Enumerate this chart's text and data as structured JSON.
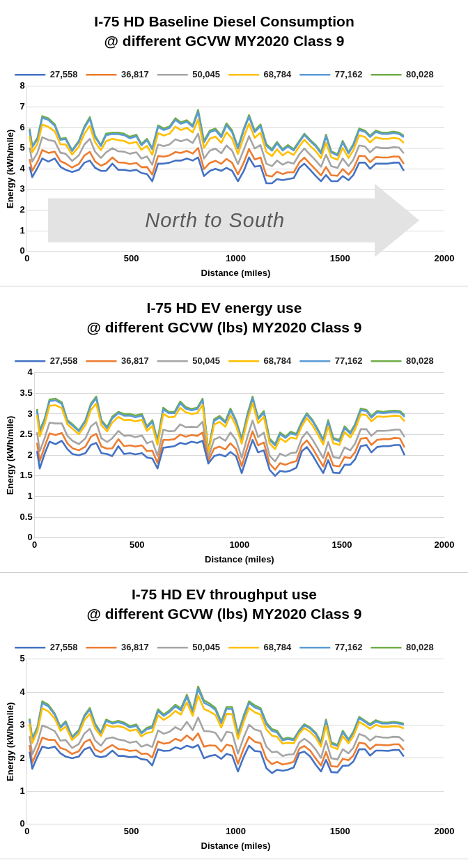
{
  "chart_data": [
    {
      "type": "line",
      "title": "I-75 HD Baseline Diesel Consumption\n@ different GCVW MY2020 Class 9",
      "xlabel": "Distance (miles)",
      "ylabel": "Energy (kWh/mile)",
      "xlim": [
        0,
        2000
      ],
      "xticks": [
        0,
        500,
        1000,
        1500,
        2000
      ],
      "ylim": [
        0,
        8
      ],
      "yticks": [
        0,
        1,
        2,
        3,
        4,
        5,
        6,
        7,
        8
      ],
      "grid": "y",
      "legend": "top",
      "marker": "none",
      "line_style": "solid",
      "annotations": [
        "North to South"
      ],
      "x": [
        12,
        25,
        50,
        73,
        102,
        133,
        160,
        185,
        216,
        248,
        275,
        301,
        326,
        354,
        379,
        409,
        437,
        465,
        492,
        524,
        548,
        575,
        600,
        628,
        655,
        683,
        711,
        737,
        766,
        794,
        820,
        848,
        876,
        903,
        931,
        956,
        983,
        1011,
        1039,
        1064,
        1091,
        1119,
        1147,
        1174,
        1198,
        1225,
        1250,
        1278,
        1305,
        1329,
        1357,
        1384,
        1409,
        1433,
        1458,
        1488,
        1513,
        1541,
        1564,
        1592,
        1620,
        1644,
        1672,
        1702,
        1730,
        1758,
        1783,
        1806
      ],
      "series": [
        {
          "name": "27,558",
          "color": "#4472c4",
          "values": [
            4.1,
            3.6,
            4.05,
            4.5,
            4.35,
            4.5,
            4.1,
            3.95,
            3.85,
            3.95,
            4.3,
            4.4,
            4.05,
            3.9,
            3.9,
            4.25,
            3.95,
            3.95,
            3.9,
            3.95,
            3.8,
            3.75,
            3.4,
            4.25,
            4.25,
            4.3,
            4.4,
            4.4,
            4.5,
            4.4,
            4.55,
            3.65,
            3.9,
            4.0,
            3.9,
            4.05,
            3.9,
            3.4,
            3.9,
            4.55,
            4.1,
            4.15,
            3.3,
            3.3,
            3.5,
            3.45,
            3.5,
            3.55,
            4.05,
            4.25,
            3.95,
            3.65,
            3.4,
            3.7,
            3.4,
            3.4,
            3.65,
            3.45,
            3.7,
            4.3,
            4.3,
            4.0,
            4.25,
            4.25,
            4.25,
            4.3,
            4.3,
            3.9
          ]
        },
        {
          "name": "36,817",
          "color": "#ed7d31",
          "values": [
            4.47,
            3.9,
            4.34,
            4.91,
            4.77,
            4.83,
            4.37,
            4.26,
            4.06,
            4.23,
            4.65,
            4.82,
            4.36,
            4.15,
            4.26,
            4.55,
            4.31,
            4.3,
            4.23,
            4.29,
            4.08,
            4.09,
            3.72,
            4.62,
            4.59,
            4.65,
            4.81,
            4.77,
            4.87,
            4.74,
            5.01,
            3.99,
            4.29,
            4.39,
            4.24,
            4.48,
            4.29,
            3.73,
            4.31,
            4.96,
            4.45,
            4.55,
            3.68,
            3.63,
            3.86,
            3.75,
            3.83,
            3.83,
            4.31,
            4.54,
            4.24,
            3.95,
            3.68,
            4.09,
            3.69,
            3.66,
            3.99,
            3.72,
            4.0,
            4.63,
            4.61,
            4.32,
            4.57,
            4.55,
            4.55,
            4.6,
            4.59,
            4.24
          ]
        },
        {
          "name": "50,045",
          "color": "#a5a5a5",
          "values": [
            5.03,
            4.35,
            4.78,
            5.53,
            5.4,
            5.33,
            4.78,
            4.73,
            4.38,
            4.65,
            5.18,
            5.45,
            4.83,
            4.53,
            4.8,
            5.0,
            4.85,
            4.83,
            4.73,
            4.8,
            4.5,
            4.6,
            4.2,
            5.18,
            5.1,
            5.18,
            5.43,
            5.33,
            5.43,
            5.25,
            5.7,
            4.5,
            4.88,
            4.98,
            4.75,
            5.13,
            4.88,
            4.23,
            4.93,
            5.58,
            4.98,
            5.15,
            4.25,
            4.13,
            4.4,
            4.2,
            4.33,
            4.25,
            4.7,
            4.98,
            4.68,
            4.4,
            4.1,
            4.68,
            4.13,
            4.05,
            4.5,
            4.13,
            4.45,
            5.13,
            5.08,
            4.8,
            5.05,
            5.0,
            5.0,
            5.05,
            5.03,
            4.75
          ]
        },
        {
          "name": "68,784",
          "color": "#ffc000",
          "values": [
            5.58,
            4.8,
            5.21,
            6.14,
            6.03,
            5.82,
            5.18,
            5.19,
            4.69,
            5.07,
            5.7,
            6.08,
            5.29,
            4.9,
            5.34,
            5.45,
            5.39,
            5.35,
            5.22,
            5.31,
            4.92,
            5.11,
            4.68,
            5.73,
            5.61,
            5.7,
            6.04,
            5.88,
            5.98,
            5.76,
            6.39,
            5.01,
            5.46,
            5.56,
            5.26,
            5.77,
            5.46,
            4.72,
            5.54,
            6.19,
            5.5,
            5.75,
            4.82,
            4.62,
            4.94,
            4.65,
            4.82,
            4.67,
            5.09,
            5.41,
            5.11,
            4.85,
            4.52,
            5.26,
            4.56,
            4.44,
            5.01,
            4.53,
            4.9,
            5.62,
            5.54,
            5.28,
            5.53,
            5.45,
            5.45,
            5.5,
            5.46,
            5.26
          ]
        },
        {
          "name": "77,162",
          "color": "#5b9bd5",
          "values": [
            5.88,
            5.04,
            5.44,
            6.47,
            6.37,
            6.08,
            5.4,
            5.44,
            4.86,
            5.29,
            5.98,
            6.42,
            5.54,
            5.1,
            5.63,
            5.69,
            5.68,
            5.63,
            5.48,
            5.58,
            5.14,
            5.38,
            4.94,
            6.03,
            5.88,
            5.98,
            6.37,
            6.18,
            6.28,
            6.03,
            6.76,
            5.28,
            5.77,
            5.87,
            5.53,
            6.11,
            5.77,
            4.98,
            5.87,
            6.52,
            5.78,
            6.07,
            5.12,
            4.88,
            5.23,
            4.89,
            5.08,
            4.89,
            5.3,
            5.64,
            5.34,
            5.09,
            4.74,
            5.57,
            4.79,
            4.65,
            5.28,
            4.75,
            5.14,
            5.88,
            5.79,
            5.54,
            5.79,
            5.69,
            5.69,
            5.74,
            5.69,
            5.53
          ]
        },
        {
          "name": "80,028",
          "color": "#70ad47",
          "values": [
            5.95,
            5.1,
            5.5,
            6.55,
            6.45,
            6.15,
            5.45,
            5.5,
            4.9,
            5.35,
            6.05,
            6.5,
            5.6,
            5.15,
            5.7,
            5.75,
            5.75,
            5.7,
            5.55,
            5.65,
            5.2,
            5.45,
            5.0,
            6.1,
            5.95,
            6.05,
            6.45,
            6.25,
            6.35,
            6.1,
            6.85,
            5.35,
            5.85,
            5.95,
            5.6,
            6.2,
            5.85,
            5.05,
            5.95,
            6.6,
            5.85,
            6.15,
            5.2,
            4.95,
            5.3,
            4.95,
            5.15,
            4.95,
            5.35,
            5.7,
            5.4,
            5.15,
            4.8,
            5.65,
            4.85,
            4.7,
            5.35,
            4.8,
            5.2,
            5.95,
            5.85,
            5.6,
            5.85,
            5.75,
            5.75,
            5.8,
            5.75,
            5.6
          ]
        }
      ]
    },
    {
      "type": "line",
      "title": "I-75 HD EV energy use\n@ different GCVW (lbs) MY2020 Class 9",
      "xlabel": "Distance (miles)",
      "ylabel": "Energy (kWh/mile)",
      "xlim": [
        0,
        2000
      ],
      "xticks": [
        0,
        500,
        1000,
        1500,
        2000
      ],
      "ylim": [
        0,
        4
      ],
      "yticks": [
        0,
        0.5,
        1,
        1.5,
        2,
        2.5,
        3,
        3.5,
        4
      ],
      "grid": "y",
      "legend": "top",
      "marker": "none",
      "line_style": "solid",
      "x": [
        12,
        25,
        50,
        73,
        102,
        133,
        160,
        185,
        216,
        248,
        275,
        301,
        326,
        354,
        379,
        409,
        437,
        465,
        492,
        524,
        548,
        575,
        600,
        628,
        655,
        683,
        711,
        737,
        766,
        794,
        820,
        848,
        876,
        903,
        931,
        956,
        983,
        1011,
        1039,
        1064,
        1091,
        1119,
        1147,
        1174,
        1198,
        1225,
        1250,
        1278,
        1305,
        1329,
        1357,
        1384,
        1409,
        1433,
        1458,
        1488,
        1513,
        1541,
        1564,
        1592,
        1620,
        1644,
        1672,
        1702,
        1730,
        1758,
        1783,
        1806
      ],
      "series": [
        {
          "name": "27,558",
          "color": "#4472c4",
          "values": [
            2.1,
            1.68,
            2.05,
            2.33,
            2.27,
            2.35,
            2.15,
            2.03,
            2.0,
            2.05,
            2.25,
            2.3,
            2.05,
            2.03,
            1.98,
            2.22,
            2.03,
            2.05,
            2.02,
            2.05,
            1.95,
            1.92,
            1.68,
            2.18,
            2.2,
            2.22,
            2.3,
            2.27,
            2.33,
            2.3,
            2.35,
            1.8,
            1.98,
            2.02,
            1.97,
            2.08,
            1.98,
            1.57,
            2.0,
            2.37,
            2.07,
            2.12,
            1.65,
            1.5,
            1.62,
            1.6,
            1.63,
            1.7,
            2.1,
            2.2,
            2.0,
            1.77,
            1.57,
            1.88,
            1.58,
            1.57,
            1.77,
            1.77,
            1.9,
            2.22,
            2.25,
            2.07,
            2.2,
            2.22,
            2.22,
            2.25,
            2.25,
            2.0
          ]
        },
        {
          "name": "36,817",
          "color": "#ed7d31",
          "values": [
            2.3,
            1.86,
            2.22,
            2.53,
            2.49,
            2.54,
            2.29,
            2.17,
            2.12,
            2.21,
            2.45,
            2.52,
            2.21,
            2.16,
            2.17,
            2.39,
            2.22,
            2.24,
            2.21,
            2.24,
            2.1,
            2.11,
            1.81,
            2.37,
            2.37,
            2.39,
            2.5,
            2.45,
            2.49,
            2.47,
            2.55,
            1.86,
            2.16,
            2.21,
            2.14,
            2.29,
            2.15,
            1.74,
            2.2,
            2.58,
            2.24,
            2.31,
            1.8,
            1.65,
            1.81,
            1.77,
            1.82,
            1.86,
            2.24,
            2.36,
            2.17,
            1.94,
            1.73,
            2.07,
            1.75,
            1.73,
            1.96,
            1.93,
            2.07,
            2.4,
            2.42,
            2.25,
            2.37,
            2.39,
            2.39,
            2.42,
            2.41,
            2.19
          ]
        },
        {
          "name": "50,045",
          "color": "#a5a5a5",
          "values": [
            2.56,
            2.09,
            2.43,
            2.79,
            2.77,
            2.77,
            2.47,
            2.35,
            2.27,
            2.41,
            2.7,
            2.8,
            2.41,
            2.32,
            2.41,
            2.59,
            2.47,
            2.48,
            2.44,
            2.48,
            2.29,
            2.34,
            1.98,
            2.62,
            2.58,
            2.59,
            2.75,
            2.68,
            2.69,
            2.68,
            2.81,
            1.94,
            2.38,
            2.44,
            2.35,
            2.55,
            2.37,
            1.94,
            2.45,
            2.84,
            2.44,
            2.55,
            1.99,
            1.85,
            2.04,
            1.98,
            2.05,
            2.07,
            2.42,
            2.57,
            2.38,
            2.15,
            1.93,
            2.32,
            1.96,
            1.93,
            2.19,
            2.12,
            2.28,
            2.63,
            2.63,
            2.47,
            2.59,
            2.59,
            2.6,
            2.62,
            2.62,
            2.44
          ]
        },
        {
          "name": "68,784",
          "color": "#ffc000",
          "values": [
            2.97,
            2.46,
            2.77,
            3.2,
            3.21,
            3.14,
            2.75,
            2.64,
            2.51,
            2.73,
            3.1,
            3.25,
            2.73,
            2.58,
            2.79,
            2.93,
            2.85,
            2.86,
            2.82,
            2.86,
            2.59,
            2.71,
            2.25,
            3.0,
            2.92,
            2.93,
            3.15,
            3.04,
            3.0,
            3.02,
            3.22,
            2.06,
            2.74,
            2.81,
            2.69,
            2.97,
            2.72,
            2.28,
            2.85,
            3.26,
            2.78,
            2.93,
            2.29,
            2.15,
            2.41,
            2.32,
            2.43,
            2.4,
            2.71,
            2.9,
            2.72,
            2.49,
            2.26,
            2.7,
            2.29,
            2.25,
            2.56,
            2.43,
            2.62,
            2.99,
            2.97,
            2.82,
            2.94,
            2.93,
            2.94,
            2.96,
            2.95,
            2.82
          ]
        },
        {
          "name": "77,162",
          "color": "#5b9bd5",
          "values": [
            3.08,
            2.56,
            2.87,
            3.31,
            3.33,
            3.24,
            2.82,
            2.72,
            2.58,
            2.82,
            3.21,
            3.38,
            2.82,
            2.65,
            2.89,
            3.02,
            2.96,
            2.96,
            2.92,
            2.96,
            2.67,
            2.81,
            2.32,
            3.11,
            3.02,
            3.02,
            3.26,
            3.13,
            3.09,
            3.12,
            3.33,
            2.09,
            2.83,
            2.91,
            2.79,
            3.09,
            2.82,
            2.37,
            2.96,
            3.38,
            2.87,
            3.03,
            2.37,
            2.24,
            2.51,
            2.42,
            2.53,
            2.49,
            2.79,
            2.99,
            2.82,
            2.59,
            2.35,
            2.81,
            2.39,
            2.34,
            2.66,
            2.52,
            2.72,
            3.09,
            3.07,
            2.91,
            3.04,
            3.02,
            3.04,
            3.05,
            3.04,
            2.93
          ]
        },
        {
          "name": "80,028",
          "color": "#70ad47",
          "values": [
            3.12,
            2.6,
            2.9,
            3.35,
            3.37,
            3.28,
            2.85,
            2.75,
            2.6,
            2.85,
            3.25,
            3.42,
            2.85,
            2.68,
            2.93,
            3.05,
            3.0,
            3.0,
            2.96,
            3.0,
            2.7,
            2.85,
            2.35,
            3.15,
            3.05,
            3.05,
            3.3,
            3.17,
            3.12,
            3.15,
            3.37,
            2.1,
            2.87,
            2.95,
            2.82,
            3.13,
            2.85,
            2.4,
            3.0,
            3.42,
            2.9,
            3.07,
            2.4,
            2.27,
            2.55,
            2.45,
            2.57,
            2.52,
            2.82,
            3.02,
            2.85,
            2.62,
            2.38,
            2.85,
            2.42,
            2.37,
            2.7,
            2.55,
            2.75,
            3.13,
            3.1,
            2.95,
            3.07,
            3.05,
            3.07,
            3.08,
            3.07,
            2.97
          ]
        }
      ]
    },
    {
      "type": "line",
      "title": "I-75 HD EV throughput use\n@ different GCVW (lbs) MY2020 Class 9",
      "xlabel": "Distance (miles)",
      "ylabel": "Energy (kWh/mile)",
      "xlim": [
        0,
        2000
      ],
      "xticks": [
        0,
        500,
        1000,
        1500,
        2000
      ],
      "ylim": [
        0,
        5
      ],
      "yticks": [
        0,
        1,
        2,
        3,
        4,
        5
      ],
      "grid": "y",
      "legend": "top",
      "marker": "none",
      "line_style": "solid",
      "x": [
        12,
        25,
        50,
        73,
        102,
        133,
        160,
        185,
        216,
        248,
        275,
        301,
        326,
        354,
        379,
        409,
        437,
        465,
        492,
        524,
        548,
        575,
        600,
        628,
        655,
        683,
        711,
        737,
        766,
        794,
        820,
        848,
        876,
        903,
        931,
        956,
        983,
        1011,
        1039,
        1064,
        1091,
        1119,
        1147,
        1174,
        1198,
        1225,
        1250,
        1278,
        1305,
        1329,
        1357,
        1384,
        1409,
        1433,
        1458,
        1488,
        1513,
        1541,
        1564,
        1592,
        1620,
        1644,
        1672,
        1702,
        1730,
        1758,
        1783,
        1806
      ],
      "series": [
        {
          "name": "27,558",
          "color": "#4472c4",
          "values": [
            2.2,
            1.68,
            2.05,
            2.35,
            2.3,
            2.35,
            2.15,
            2.05,
            2.0,
            2.05,
            2.27,
            2.33,
            2.08,
            2.03,
            2.07,
            2.23,
            2.07,
            2.07,
            2.03,
            2.05,
            1.97,
            1.95,
            1.78,
            2.27,
            2.22,
            2.23,
            2.33,
            2.28,
            2.38,
            2.32,
            2.4,
            2.0,
            2.07,
            2.1,
            1.98,
            2.13,
            2.08,
            1.6,
            2.05,
            2.38,
            2.22,
            2.2,
            1.7,
            1.55,
            1.65,
            1.62,
            1.65,
            1.72,
            2.15,
            2.2,
            2.05,
            1.8,
            1.6,
            1.95,
            1.58,
            1.57,
            1.77,
            1.78,
            1.9,
            2.27,
            2.27,
            2.08,
            2.23,
            2.23,
            2.22,
            2.25,
            2.25,
            2.05
          ]
        },
        {
          "name": "36,817",
          "color": "#ed7d31",
          "values": [
            2.4,
            1.86,
            2.23,
            2.62,
            2.56,
            2.55,
            2.31,
            2.26,
            2.13,
            2.21,
            2.48,
            2.57,
            2.27,
            2.18,
            2.29,
            2.4,
            2.28,
            2.27,
            2.22,
            2.24,
            2.13,
            2.14,
            2.02,
            2.51,
            2.44,
            2.47,
            2.59,
            2.52,
            2.69,
            2.55,
            2.75,
            2.35,
            2.39,
            2.38,
            2.2,
            2.41,
            2.37,
            1.83,
            2.3,
            2.65,
            2.5,
            2.46,
            1.98,
            1.82,
            1.89,
            1.81,
            1.84,
            1.89,
            2.29,
            2.37,
            2.23,
            1.99,
            1.78,
            2.19,
            1.76,
            1.74,
            1.98,
            1.94,
            2.08,
            2.47,
            2.44,
            2.27,
            2.41,
            2.4,
            2.39,
            2.42,
            2.42,
            2.25
          ]
        },
        {
          "name": "50,045",
          "color": "#a5a5a5",
          "values": [
            2.67,
            2.11,
            2.47,
            2.99,
            2.92,
            2.82,
            2.53,
            2.55,
            2.31,
            2.43,
            2.75,
            2.89,
            2.54,
            2.38,
            2.59,
            2.63,
            2.57,
            2.54,
            2.47,
            2.51,
            2.35,
            2.41,
            2.34,
            2.84,
            2.74,
            2.8,
            2.94,
            2.85,
            3.1,
            2.85,
            3.23,
            2.82,
            2.81,
            2.77,
            2.51,
            2.8,
            2.77,
            2.14,
            2.64,
            3.01,
            2.87,
            2.82,
            2.35,
            2.18,
            2.2,
            2.07,
            2.11,
            2.12,
            2.48,
            2.59,
            2.46,
            2.26,
            2.01,
            2.52,
            2.0,
            1.96,
            2.27,
            2.15,
            2.32,
            2.73,
            2.67,
            2.53,
            2.66,
            2.63,
            2.62,
            2.65,
            2.64,
            2.52
          ]
        },
        {
          "name": "68,784",
          "color": "#ffc000",
          "values": [
            3.05,
            2.46,
            2.82,
            3.51,
            3.42,
            3.2,
            2.83,
            2.96,
            2.55,
            2.73,
            3.15,
            3.34,
            2.9,
            2.67,
            3.01,
            2.95,
            2.97,
            2.93,
            2.83,
            2.87,
            2.66,
            2.77,
            2.79,
            3.3,
            3.16,
            3.27,
            3.43,
            3.32,
            3.69,
            3.28,
            3.9,
            3.49,
            3.41,
            3.31,
            2.93,
            3.34,
            3.33,
            2.58,
            3.11,
            3.52,
            3.39,
            3.32,
            2.87,
            2.68,
            2.65,
            2.44,
            2.47,
            2.45,
            2.75,
            2.91,
            2.8,
            2.62,
            2.35,
            2.99,
            2.35,
            2.28,
            2.67,
            2.45,
            2.67,
            3.1,
            3.0,
            2.89,
            3.01,
            2.95,
            2.95,
            2.97,
            2.96,
            2.9
          ]
        },
        {
          "name": "77,162",
          "color": "#5b9bd5",
          "values": [
            3.16,
            2.56,
            2.91,
            3.67,
            3.57,
            3.31,
            2.92,
            3.08,
            2.62,
            2.82,
            3.26,
            3.47,
            3.01,
            2.75,
            3.13,
            3.05,
            3.09,
            3.04,
            2.93,
            2.98,
            2.75,
            2.88,
            2.92,
            3.43,
            3.28,
            3.4,
            3.57,
            3.45,
            3.86,
            3.4,
            4.1,
            3.68,
            3.59,
            3.46,
            3.06,
            3.49,
            3.49,
            2.7,
            3.25,
            3.67,
            3.54,
            3.47,
            3.02,
            2.83,
            2.78,
            2.54,
            2.58,
            2.55,
            2.82,
            3.0,
            2.9,
            2.73,
            2.44,
            3.12,
            2.44,
            2.37,
            2.79,
            2.54,
            2.76,
            3.21,
            3.1,
            2.99,
            3.11,
            3.05,
            3.05,
            3.07,
            3.05,
            3.01
          ]
        },
        {
          "name": "80,028",
          "color": "#70ad47",
          "values": [
            3.2,
            2.6,
            2.95,
            3.72,
            3.62,
            3.35,
            2.95,
            3.12,
            2.65,
            2.85,
            3.3,
            3.52,
            3.05,
            2.78,
            3.17,
            3.08,
            3.13,
            3.08,
            2.97,
            3.02,
            2.78,
            2.92,
            2.97,
            3.48,
            3.32,
            3.45,
            3.62,
            3.5,
            3.92,
            3.45,
            4.17,
            3.75,
            3.65,
            3.52,
            3.1,
            3.55,
            3.55,
            2.75,
            3.3,
            3.72,
            3.6,
            3.52,
            3.08,
            2.88,
            2.83,
            2.58,
            2.62,
            2.58,
            2.85,
            3.03,
            2.93,
            2.77,
            2.48,
            3.17,
            2.48,
            2.4,
            2.83,
            2.57,
            2.8,
            3.25,
            3.13,
            3.03,
            3.15,
            3.08,
            3.08,
            3.1,
            3.08,
            3.05
          ]
        }
      ]
    }
  ]
}
